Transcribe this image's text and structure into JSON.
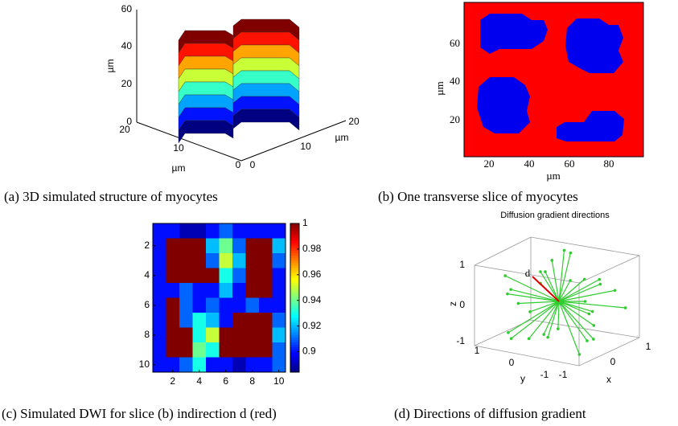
{
  "panel_a": {
    "caption": "(a) 3D simulated structure of myocytes",
    "z_label": "µm",
    "x_label": "µm",
    "y_label": "µm",
    "z_ticks": [
      "0",
      "20",
      "40",
      "60"
    ],
    "y_ticks": [
      "20",
      "10",
      "0"
    ],
    "x_ticks": [
      "0",
      "10",
      "20"
    ]
  },
  "panel_b": {
    "caption": "(b) One transverse slice of myocytes",
    "x_label": "µm",
    "y_label": "µm",
    "x_ticks": [
      "20",
      "40",
      "60",
      "80"
    ],
    "y_ticks": [
      "20",
      "40",
      "60"
    ]
  },
  "chart_data": {
    "type": "heatmap",
    "caption": "(c) Simulated DWI for slice (b) indirection d (red)",
    "values": [
      [
        0.9,
        0.9,
        0.89,
        0.89,
        0.9,
        0.91,
        0.9,
        0.9,
        0.9,
        0.9
      ],
      [
        0.9,
        1,
        1,
        1,
        0.92,
        0.94,
        0.91,
        1,
        1,
        0.92
      ],
      [
        0.9,
        1,
        1,
        1,
        0.91,
        0.95,
        0.92,
        1,
        1,
        0.91
      ],
      [
        0.9,
        1,
        1,
        1,
        1,
        0.93,
        0.91,
        1,
        1,
        0.9
      ],
      [
        0.9,
        0.9,
        0.91,
        0.9,
        0.9,
        0.92,
        0.9,
        1,
        1,
        0.9
      ],
      [
        0.9,
        1,
        0.91,
        0.9,
        0.91,
        0.9,
        0.9,
        0.91,
        0.9,
        0.9
      ],
      [
        0.9,
        1,
        0.91,
        0.93,
        0.92,
        0.9,
        1,
        1,
        1,
        0.91
      ],
      [
        0.9,
        1,
        1,
        0.93,
        0.95,
        1,
        1,
        1,
        1,
        0.92
      ],
      [
        0.9,
        1,
        1,
        0.94,
        0.93,
        1,
        1,
        1,
        1,
        0.91
      ],
      [
        0.9,
        0.9,
        0.91,
        0.93,
        0.9,
        0.9,
        0.89,
        0.9,
        0.9,
        0.91
      ]
    ],
    "xticks": [
      2,
      4,
      6,
      8,
      10
    ],
    "yticks": [
      2,
      4,
      6,
      8,
      10
    ],
    "clim": [
      0.884,
      1
    ],
    "cticks": [
      0.9,
      0.92,
      0.94,
      0.96,
      0.98,
      1
    ],
    "colormap": "jet"
  },
  "panel_d": {
    "title": "Diffusion gradient directions",
    "caption": "(d) Directions of diffusion gradient",
    "vector_label": "d",
    "z_label": "z",
    "y_label": "y",
    "x_label": "x",
    "z_ticks": [
      "1",
      "0",
      "-1"
    ],
    "y_ticks": [
      "1",
      "0",
      "-1"
    ],
    "x_ticks": [
      "-1",
      "0",
      "1"
    ]
  }
}
